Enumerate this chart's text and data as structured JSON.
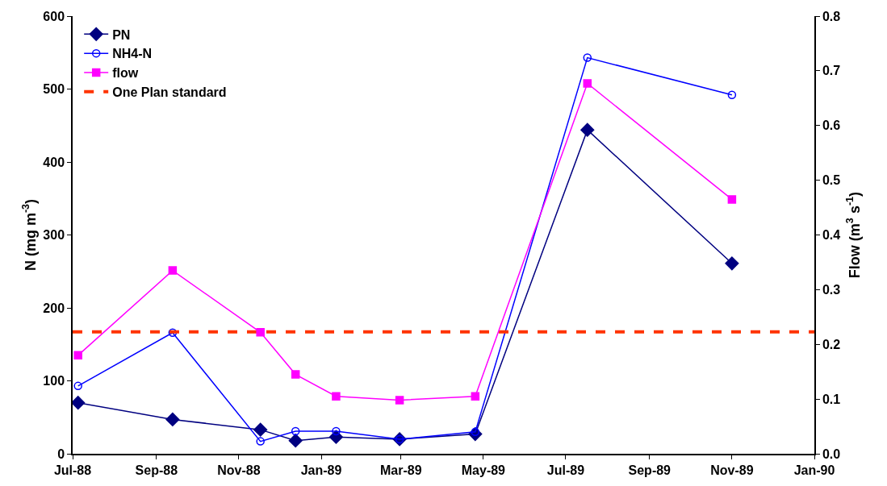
{
  "chart_data": {
    "type": "line",
    "ylabel": "N (mg m$^{-3}$)",
    "y2label": "Flow (m$^{3}$ s$^{-1}$)",
    "x": [
      "1988-07-05",
      "1988-09-13",
      "1988-11-17",
      "1988-12-13",
      "1989-01-12",
      "1989-02-28",
      "1989-04-25",
      "1989-07-17",
      "1989-11-01"
    ],
    "series": [
      {
        "name": "PN",
        "color": "#000080",
        "marker": "diamond",
        "values": [
          70,
          47,
          33,
          18,
          23,
          20,
          27,
          444,
          261
        ]
      },
      {
        "name": "NH4-N",
        "color": "#0000ff",
        "marker": "circle",
        "values": [
          93,
          166,
          17,
          31,
          31,
          20,
          30,
          543,
          492
        ]
      },
      {
        "name": "flow",
        "color": "#ff00ff",
        "marker": "square",
        "axis": "y2",
        "values": [
          0.18,
          0.335,
          0.222,
          0.145,
          0.105,
          0.098,
          0.105,
          0.677,
          0.465
        ]
      }
    ],
    "ref_lines": [
      {
        "axis": "y",
        "value": 167,
        "label": "One Plan standard",
        "color": "#ff3300",
        "line_style": "dashed"
      }
    ],
    "xlim": [
      "1988-07-01",
      "1990-01-01"
    ],
    "xticks": [
      {
        "value": "1988-07-01",
        "label": "Jul-88"
      },
      {
        "value": "1988-09-01",
        "label": "Sep-88"
      },
      {
        "value": "1988-11-01",
        "label": "Nov-88"
      },
      {
        "value": "1989-01-01",
        "label": "Jan-89"
      },
      {
        "value": "1989-03-01",
        "label": "Mar-89"
      },
      {
        "value": "1989-05-01",
        "label": "May-89"
      },
      {
        "value": "1989-07-01",
        "label": "Jul-89"
      },
      {
        "value": "1989-09-01",
        "label": "Sep-89"
      },
      {
        "value": "1989-11-01",
        "label": "Nov-89"
      },
      {
        "value": "1990-01-01",
        "label": "Jan-90"
      }
    ],
    "ylim": [
      0,
      600
    ],
    "yticks": [
      0,
      100,
      200,
      300,
      400,
      500,
      600
    ],
    "y2lim": [
      0,
      0.8
    ],
    "y2ticks": [
      {
        "value": 0,
        "label": "0.0"
      },
      0.1,
      0.2,
      0.3,
      0.4,
      0.5,
      0.6,
      0.7,
      0.8
    ],
    "grid": false,
    "legend": "top left"
  }
}
